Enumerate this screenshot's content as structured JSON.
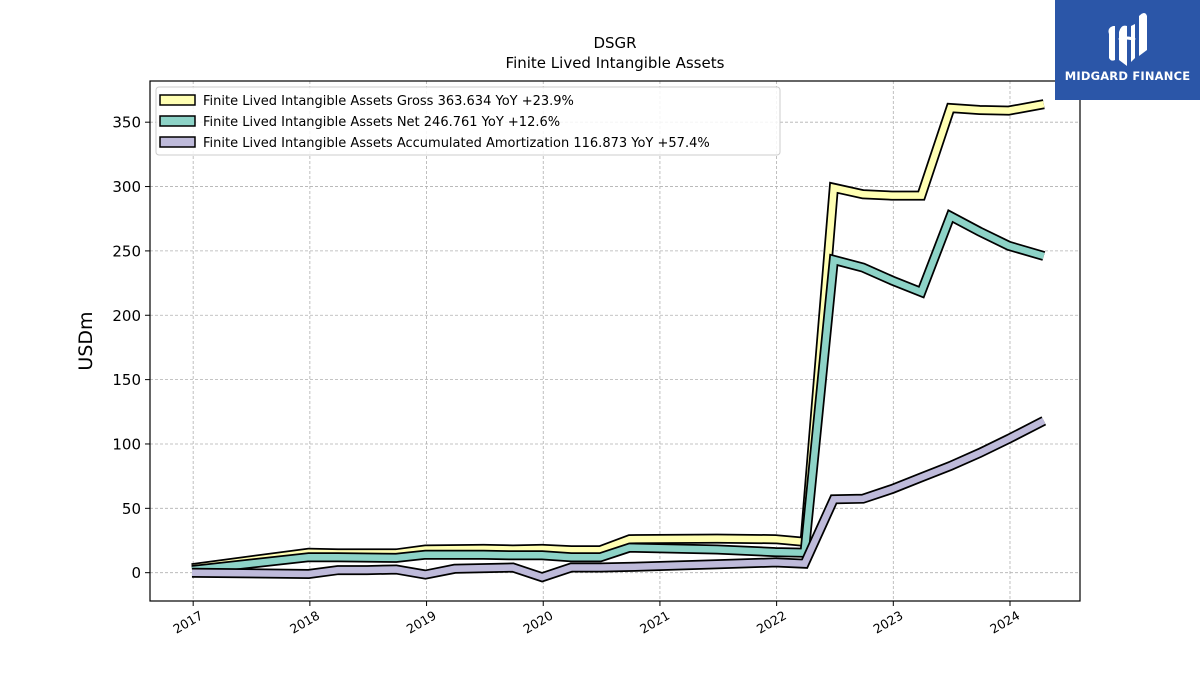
{
  "chart_data": {
    "type": "line",
    "title": "DSGR",
    "subtitle": "Finite Lived Intangible Assets",
    "ylabel": "USDm",
    "xlabel": "",
    "ylim": [
      -22,
      382
    ],
    "yticks": [
      0,
      50,
      100,
      150,
      200,
      250,
      300,
      350
    ],
    "xlim": [
      2016.63,
      2024.6
    ],
    "xticks": [
      "2017",
      "2018",
      "2019",
      "2020",
      "2021",
      "2022",
      "2023",
      "2024"
    ],
    "grid": true,
    "legend_position": "top-left",
    "series": [
      {
        "name": "Finite Lived Intangible Assets Gross  363.634 YoY +23.9%",
        "color": "#ffffb3",
        "x": [
          2016.99,
          2017.99,
          2018.24,
          2018.74,
          2018.99,
          2019.49,
          2019.74,
          2019.99,
          2020.24,
          2020.49,
          2020.74,
          2021.49,
          2021.99,
          2022.24,
          2022.49,
          2022.74,
          2022.99,
          2023.24,
          2023.49,
          2023.74,
          2023.99,
          2024.29
        ],
        "y": [
          3.5,
          15.5,
          15.0,
          15.0,
          18.0,
          18.5,
          18.0,
          18.5,
          17.5,
          17.5,
          26.0,
          26.5,
          26.0,
          24.0,
          299.0,
          294.0,
          293.0,
          293.0,
          361.0,
          359.5,
          359.0,
          364.0
        ]
      },
      {
        "name": "Finite Lived Intangible Assets Net  246.761 YoY +12.6%",
        "color": "#8dd3c7",
        "x": [
          2016.99,
          2017.99,
          2018.24,
          2018.74,
          2018.99,
          2019.49,
          2019.74,
          2019.99,
          2020.24,
          2020.49,
          2020.74,
          2021.49,
          2021.99,
          2022.24,
          2022.49,
          2022.74,
          2022.99,
          2023.24,
          2023.49,
          2023.74,
          2023.99,
          2024.29
        ],
        "y": [
          2.0,
          12.0,
          12.0,
          11.5,
          14.0,
          14.0,
          13.5,
          13.5,
          12.0,
          12.0,
          19.5,
          18.0,
          16.0,
          15.5,
          243.0,
          237.0,
          227.0,
          218.0,
          277.0,
          265.0,
          254.0,
          246.0
        ]
      },
      {
        "name": "Finite Lived Intangible Assets Accumulated Amortization  116.873 YoY +57.4%",
        "color": "#bebada",
        "x": [
          2016.99,
          2017.99,
          2018.24,
          2018.49,
          2018.74,
          2018.99,
          2019.24,
          2019.74,
          2019.99,
          2020.24,
          2020.49,
          2020.74,
          2021.49,
          2021.99,
          2022.24,
          2022.49,
          2022.74,
          2022.99,
          2023.24,
          2023.49,
          2023.74,
          2023.99,
          2024.29
        ],
        "y": [
          0.0,
          -1.0,
          2.0,
          2.0,
          2.5,
          -1.5,
          3.0,
          4.0,
          -3.5,
          4.0,
          4.0,
          4.5,
          6.5,
          8.0,
          7.0,
          57.0,
          57.5,
          65.0,
          74.0,
          83.0,
          93.0,
          104.0,
          118.0
        ]
      }
    ]
  },
  "logo": {
    "text": "MIDGARD FINANCE",
    "background": "#2b56a8"
  }
}
